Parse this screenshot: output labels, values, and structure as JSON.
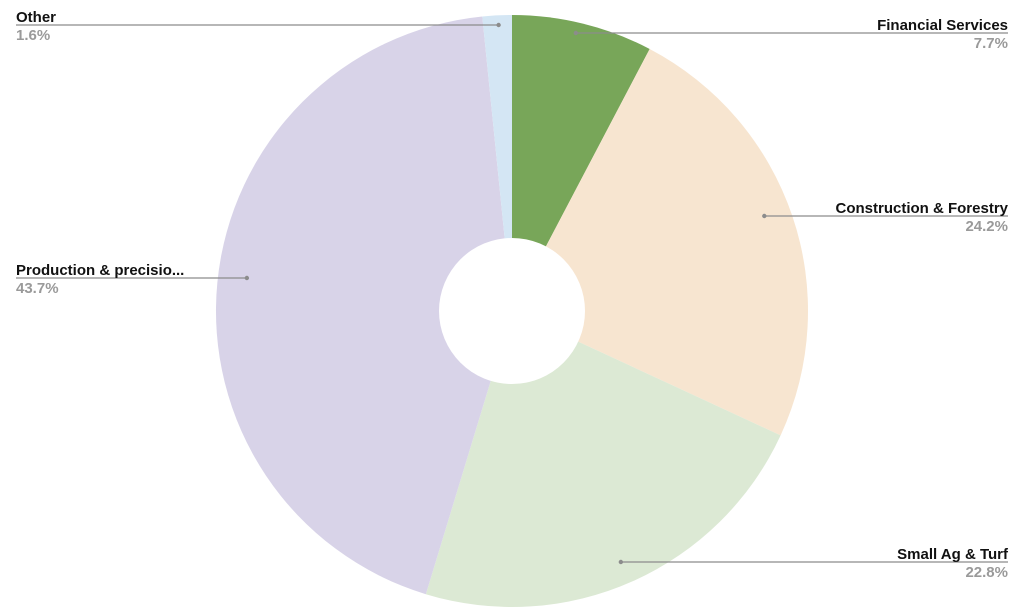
{
  "chart_data": {
    "type": "pie",
    "title": "",
    "donut": true,
    "slices": [
      {
        "label": "Financial Services",
        "value": 7.7,
        "value_label": "7.7%",
        "color": "#78a659"
      },
      {
        "label": "Construction & Forestry",
        "value": 24.2,
        "value_label": "24.2%",
        "color": "#f7e5d0"
      },
      {
        "label": "Small Ag & Turf",
        "value": 22.8,
        "value_label": "22.8%",
        "color": "#dce9d4"
      },
      {
        "label": "Production & precisio...",
        "value": 43.7,
        "value_label": "43.7%",
        "color": "#d8d3e8"
      },
      {
        "label": "Other",
        "value": 1.6,
        "value_label": "1.6%",
        "color": "#d4e6f4"
      }
    ]
  }
}
